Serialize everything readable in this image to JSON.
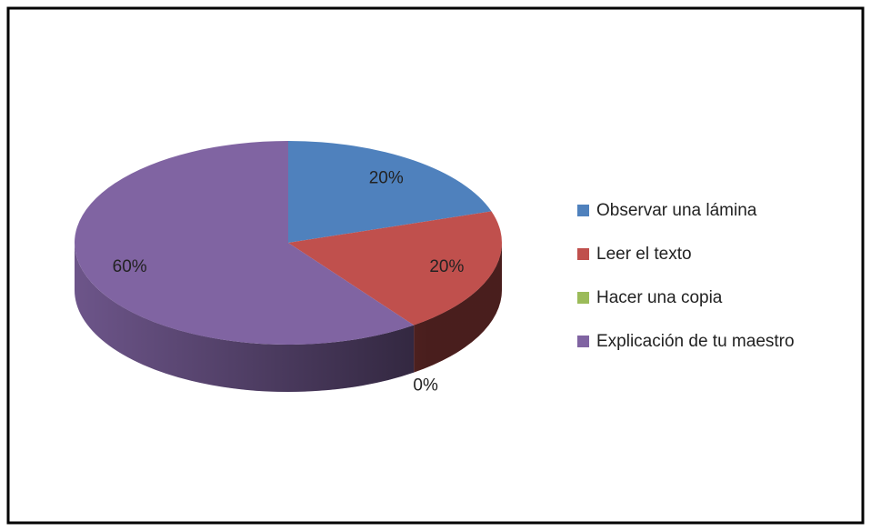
{
  "chart_data": {
    "type": "pie",
    "categories": [
      "Observar una lámina",
      "Leer el texto",
      "Hacer una copia",
      "Explicación de tu maestro"
    ],
    "values": [
      20,
      20,
      0,
      60
    ],
    "value_labels": [
      "20%",
      "20%",
      "0%",
      "60%"
    ],
    "colors": [
      "#4f81bd",
      "#c0504d",
      "#9bbb59",
      "#8064a2"
    ],
    "legend": "right"
  }
}
